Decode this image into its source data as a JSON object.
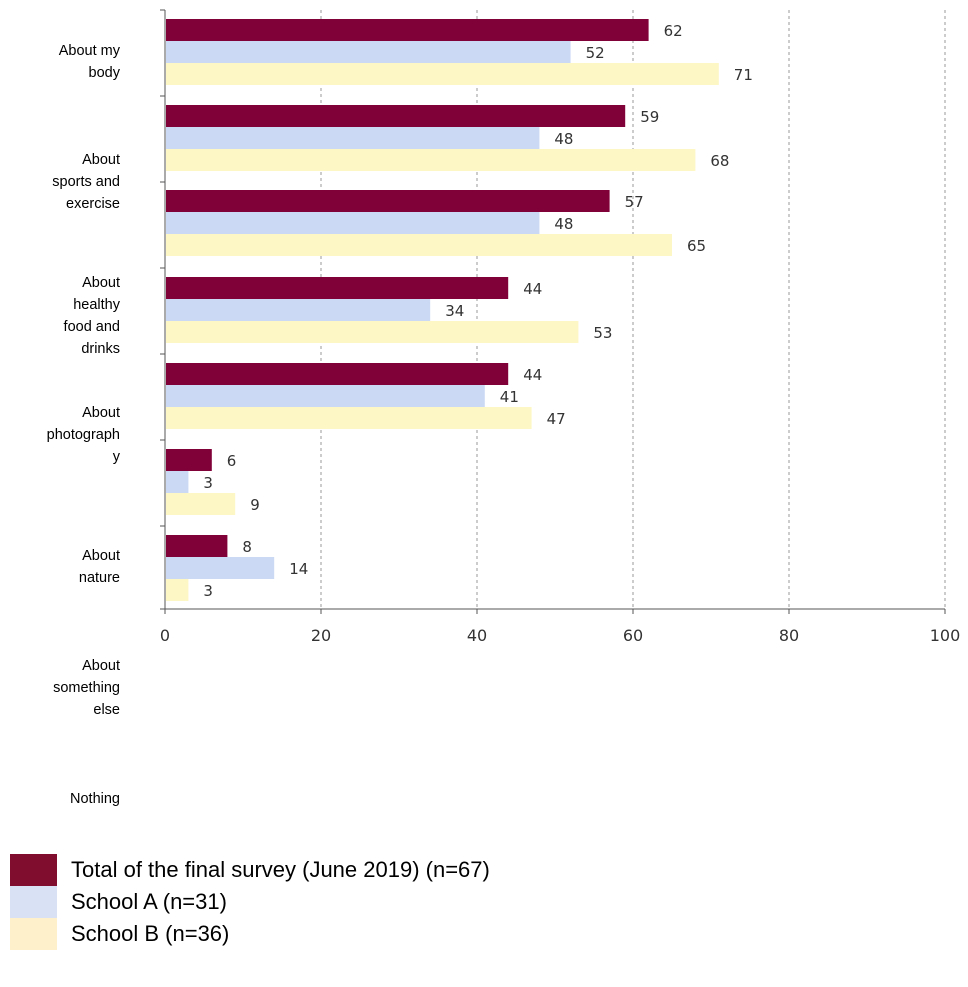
{
  "chart_data": {
    "type": "bar",
    "orientation": "horizontal",
    "categories": [
      "About my body",
      "About sports and exercise",
      "About healthy food and drinks",
      "About photography",
      "About nature",
      "About something else",
      "Nothing"
    ],
    "category_labels": [
      "About my\nbody",
      "About\nsports and\nexercise",
      "About\nhealthy\nfood and\ndrinks",
      "About\nphotograph\ny",
      "About\nnature",
      "About\nsomething\nelse",
      "Nothing"
    ],
    "series": [
      {
        "name": "Total of the final survey (June 2019) (n=67)",
        "values": [
          62,
          59,
          57,
          44,
          44,
          6,
          8
        ],
        "color": "#800038"
      },
      {
        "name": "School A (n=31)",
        "values": [
          52,
          48,
          48,
          34,
          41,
          3,
          14
        ],
        "color": "#ccd9f5"
      },
      {
        "name": "School B (n=36)",
        "values": [
          71,
          68,
          65,
          53,
          47,
          9,
          3
        ],
        "color": "#fdf7c5"
      }
    ],
    "xlim": [
      0,
      100
    ],
    "xticks": [
      0,
      20,
      40,
      60,
      80,
      100
    ],
    "grid": true,
    "legend_position": "bottom-left"
  },
  "legend_colors": [
    "#800c2e",
    "#d9e1f4",
    "#fff0cc"
  ]
}
